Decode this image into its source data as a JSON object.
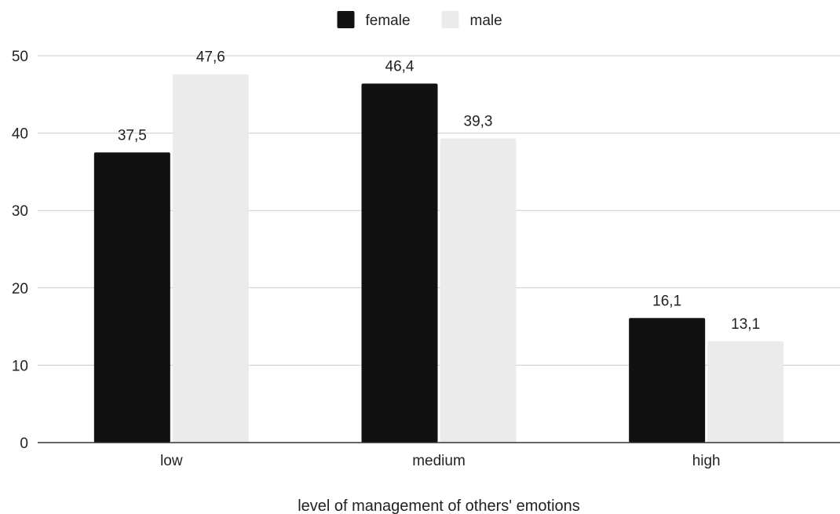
{
  "chart_data": {
    "type": "bar",
    "categories": [
      "low",
      "medium",
      "high"
    ],
    "series": [
      {
        "name": "female",
        "color": "#111111",
        "values": [
          37.5,
          46.4,
          16.1
        ],
        "labels": [
          "37,5",
          "46,4",
          "16,1"
        ]
      },
      {
        "name": "male",
        "color": "#ebebeb",
        "values": [
          47.6,
          39.3,
          13.1
        ],
        "labels": [
          "47,6",
          "39,3",
          "13,1"
        ]
      }
    ],
    "title": "",
    "xlabel": "level of management of others' emotions",
    "ylabel": "",
    "ylim": [
      0,
      50
    ],
    "yticks": [
      0,
      10,
      20,
      30,
      40,
      50
    ],
    "grid": true,
    "legend": "top-center"
  }
}
